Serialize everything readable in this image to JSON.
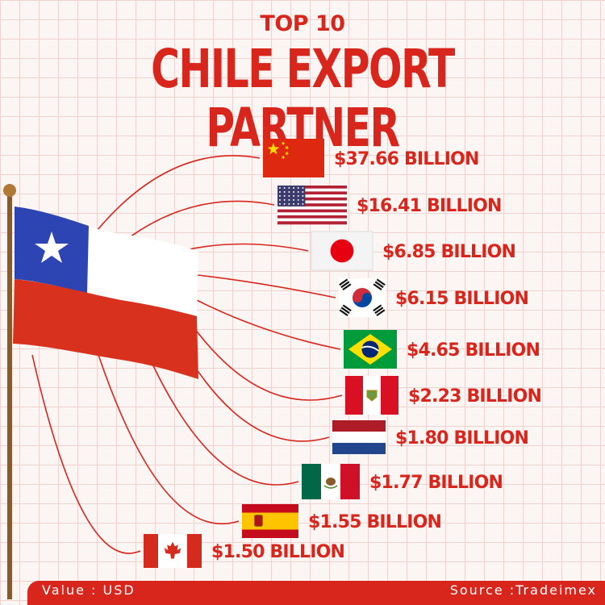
{
  "header": {
    "subtitle": "TOP 10",
    "title": "CHILE EXPORT PARTNER"
  },
  "footer": {
    "value_note": "Value : USD",
    "source_note": "Source :Tradeimex"
  },
  "colors": {
    "accent": "#d9261c",
    "grid": "#efd2d0",
    "background": "#fbf6f4"
  },
  "chart_data": {
    "type": "bar",
    "title": "CHILE EXPORT PARTNER",
    "unit": "USD",
    "categories": [
      "China",
      "United States",
      "Japan",
      "South Korea",
      "Brazil",
      "Peru",
      "Netherlands",
      "Mexico",
      "Spain",
      "Canada"
    ],
    "icons": [
      "flag-china",
      "flag-united-states",
      "flag-japan",
      "flag-south-korea",
      "flag-brazil",
      "flag-peru",
      "flag-netherlands",
      "flag-mexico",
      "flag-spain",
      "flag-canada"
    ],
    "values": [
      37.66,
      16.41,
      6.85,
      6.15,
      4.65,
      2.23,
      1.8,
      1.77,
      1.55,
      1.5
    ],
    "labels": [
      "$37.66 BILLION",
      "$16.41 BILLION",
      "$6.85 BILLION",
      "$6.15 BILLION",
      "$4.65 BILLION",
      "$2.23 BILLION",
      "$1.80 BILLION",
      "$1.77 BILLION",
      "$1.55 BILLION",
      "$1.50 BILLION"
    ]
  }
}
